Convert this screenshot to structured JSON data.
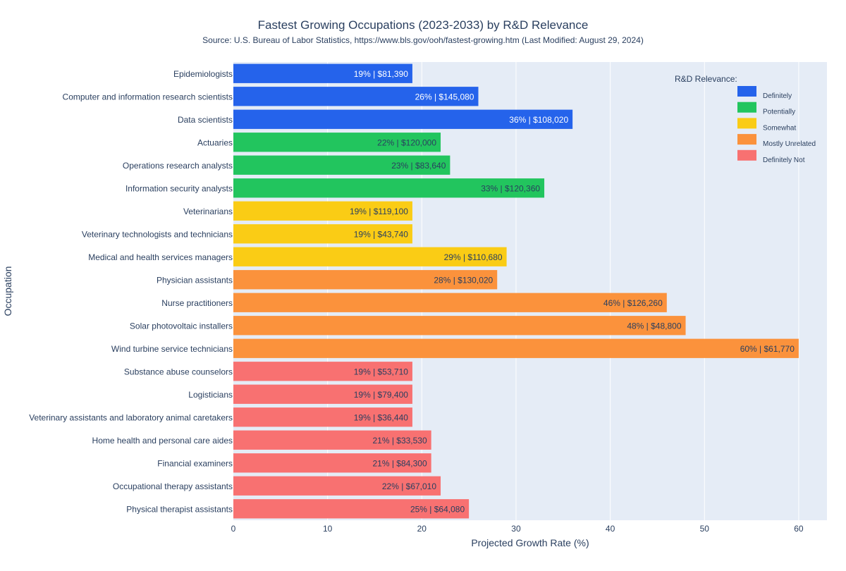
{
  "chart_data": {
    "type": "bar",
    "orientation": "horizontal",
    "title": "Fastest Growing Occupations (2023-2033) by R&D Relevance",
    "subtitle": "Source: U.S. Bureau of Labor Statistics, https://www.bls.gov/ooh/fastest-growing.htm (Last Modified: August 29, 2024)",
    "xlabel": "Projected Growth Rate (%)",
    "ylabel": "Occupation",
    "xlim": [
      0,
      63
    ],
    "xticks": [
      "0",
      "10",
      "20",
      "30",
      "40",
      "50",
      "60"
    ],
    "grid": true,
    "legend": {
      "title": "R&D Relevance:",
      "placement": "top-right",
      "items": [
        {
          "label": "Definitely",
          "color": "#2563eb"
        },
        {
          "label": "Potentially",
          "color": "#22c55e"
        },
        {
          "label": "Somewhat",
          "color": "#facc15"
        },
        {
          "label": "Mostly Unrelated",
          "color": "#fb923c"
        },
        {
          "label": "Definitely Not",
          "color": "#f87171"
        }
      ]
    },
    "bars": [
      {
        "occupation": "Epidemiologists",
        "growth": 19,
        "label": "19% | $81,390",
        "relevance": "Definitely"
      },
      {
        "occupation": "Computer and information research scientists",
        "growth": 26,
        "label": "26% | $145,080",
        "relevance": "Definitely"
      },
      {
        "occupation": "Data scientists",
        "growth": 36,
        "label": "36% | $108,020",
        "relevance": "Definitely"
      },
      {
        "occupation": "Actuaries",
        "growth": 22,
        "label": "22% | $120,000",
        "relevance": "Potentially"
      },
      {
        "occupation": "Operations research analysts",
        "growth": 23,
        "label": "23% | $83,640",
        "relevance": "Potentially"
      },
      {
        "occupation": "Information security analysts",
        "growth": 33,
        "label": "33% | $120,360",
        "relevance": "Potentially"
      },
      {
        "occupation": "Veterinarians",
        "growth": 19,
        "label": "19% | $119,100",
        "relevance": "Somewhat"
      },
      {
        "occupation": "Veterinary technologists and technicians",
        "growth": 19,
        "label": "19% | $43,740",
        "relevance": "Somewhat"
      },
      {
        "occupation": "Medical and health services managers",
        "growth": 29,
        "label": "29% | $110,680",
        "relevance": "Somewhat"
      },
      {
        "occupation": "Physician assistants",
        "growth": 28,
        "label": "28% | $130,020",
        "relevance": "Mostly Unrelated"
      },
      {
        "occupation": "Nurse practitioners",
        "growth": 46,
        "label": "46% | $126,260",
        "relevance": "Mostly Unrelated"
      },
      {
        "occupation": "Solar photovoltaic installers",
        "growth": 48,
        "label": "48% | $48,800",
        "relevance": "Mostly Unrelated"
      },
      {
        "occupation": "Wind turbine service technicians",
        "growth": 60,
        "label": "60% | $61,770",
        "relevance": "Mostly Unrelated"
      },
      {
        "occupation": "Substance abuse counselors",
        "growth": 19,
        "label": "19% | $53,710",
        "relevance": "Definitely Not"
      },
      {
        "occupation": "Logisticians",
        "growth": 19,
        "label": "19% | $79,400",
        "relevance": "Definitely Not"
      },
      {
        "occupation": "Veterinary assistants and laboratory animal caretakers",
        "growth": 19,
        "label": "19% | $36,440",
        "relevance": "Definitely Not"
      },
      {
        "occupation": "Home health and personal care aides",
        "growth": 21,
        "label": "21% | $33,530",
        "relevance": "Definitely Not"
      },
      {
        "occupation": "Financial examiners",
        "growth": 21,
        "label": "21% | $84,300",
        "relevance": "Definitely Not"
      },
      {
        "occupation": "Occupational therapy assistants",
        "growth": 22,
        "label": "22% | $67,010",
        "relevance": "Definitely Not"
      },
      {
        "occupation": "Physical therapist assistants",
        "growth": 25,
        "label": "25% | $64,080",
        "relevance": "Definitely Not"
      }
    ],
    "label_text_colors": {
      "Definitely": "#ffffff",
      "Potentially": "#2a3f5f",
      "Somewhat": "#2a3f5f",
      "Mostly Unrelated": "#2a3f5f",
      "Definitely Not": "#2a3f5f"
    },
    "plot_background": "#e5ecf6"
  }
}
